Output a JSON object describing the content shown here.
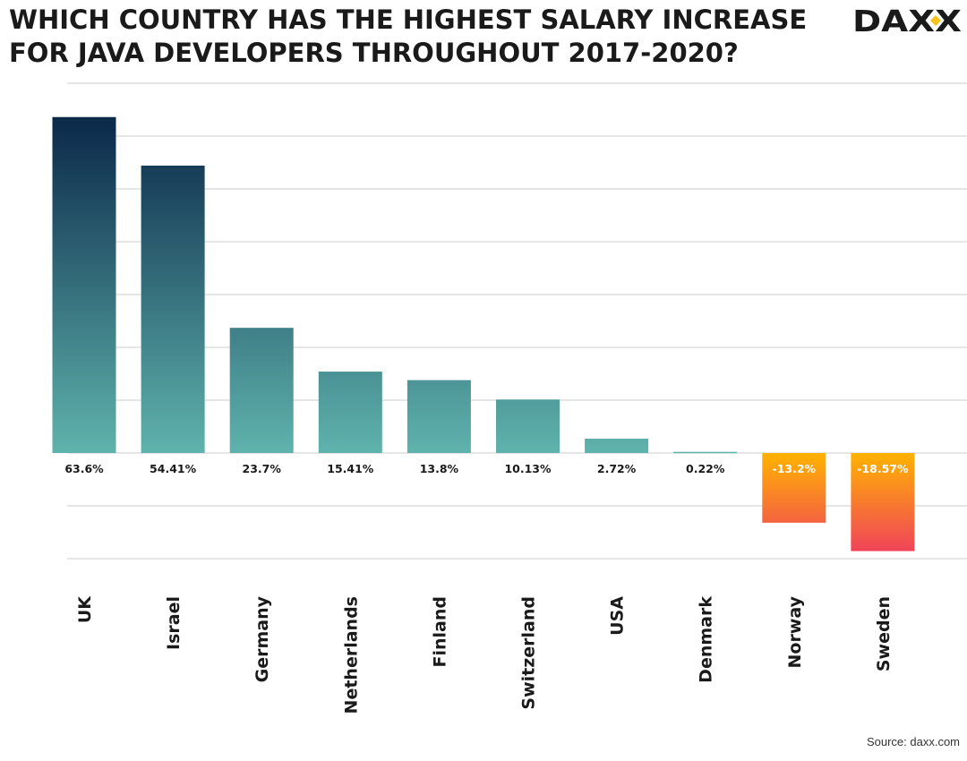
{
  "title_lines": [
    "WHICH COUNTRY HAS THE HIGHEST SALARY INCREASE",
    "FOR JAVA DEVELOPERS THROUGHOUT 2017-2020?"
  ],
  "logo_text": "DAXX",
  "source": "Source: daxx.com",
  "colors": {
    "positive_top": "#0a2748",
    "positive_bottom": "#5fb3ad",
    "negative_top": "#ffb300",
    "negative_bottom": "#f0435a",
    "title": "#1a1a1a",
    "gridline": "#cccccc",
    "logo_accent": "#f7c21b"
  },
  "chart_data": {
    "type": "bar",
    "title": "WHICH COUNTRY HAS THE HIGHEST SALARY INCREASE FOR JAVA DEVELOPERS THROUGHOUT 2017-2020?",
    "categories": [
      "UK",
      "Israel",
      "Germany",
      "Netherlands",
      "Finland",
      "Switzerland",
      "USA",
      "Denmark",
      "Norway",
      "Sweden"
    ],
    "values": [
      63.6,
      54.41,
      23.7,
      15.41,
      13.8,
      10.13,
      2.72,
      0.22,
      -13.2,
      -18.57
    ],
    "value_labels": [
      "63.6%",
      "54.41%",
      "23.7%",
      "15.41%",
      "13.8%",
      "10.13%",
      "2.72%",
      "0.22%",
      "-13.2%",
      "-18.57%"
    ],
    "unit": "%",
    "ylim": [
      -20,
      70
    ],
    "grid": true,
    "legend": "none",
    "xlabel": "",
    "ylabel": ""
  }
}
